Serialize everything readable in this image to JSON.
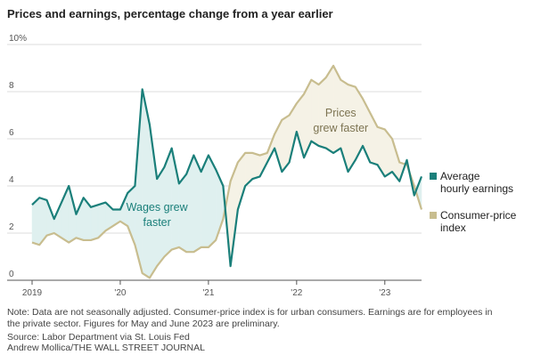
{
  "title": "Prices and earnings, percentage change from a year earlier",
  "chart_data": {
    "type": "line",
    "x_range": [
      "2019-01",
      "2023-06"
    ],
    "ylim": [
      0,
      10
    ],
    "yticks": [
      0,
      2,
      4,
      6,
      8,
      10
    ],
    "ytick_labels": [
      "0",
      "2",
      "4",
      "6",
      "8",
      "10%"
    ],
    "xticks": [
      {
        "date": "2019-01",
        "label": "2019"
      },
      {
        "date": "2020-01",
        "label": "'20"
      },
      {
        "date": "2021-01",
        "label": "'21"
      },
      {
        "date": "2022-01",
        "label": "'22"
      },
      {
        "date": "2023-01",
        "label": "'23"
      }
    ],
    "grid": true,
    "legend_position": "right",
    "shading": "area between the two series is shaded; teal tint where earnings exceed prices, beige tint where prices exceed earnings",
    "annotations": [
      {
        "lines": [
          "Wages grew",
          "faster"
        ],
        "color": "#1a7f7a"
      },
      {
        "lines": [
          "Prices",
          "grew faster"
        ],
        "color": "#7d7452"
      }
    ],
    "series": [
      {
        "name": "Average hourly earnings",
        "legend_lines": [
          "Average",
          "hourly earnings"
        ],
        "color": "#1a7f7a",
        "x": [
          "2019-01",
          "2019-02",
          "2019-03",
          "2019-04",
          "2019-05",
          "2019-06",
          "2019-07",
          "2019-08",
          "2019-09",
          "2019-10",
          "2019-11",
          "2019-12",
          "2020-01",
          "2020-02",
          "2020-03",
          "2020-04",
          "2020-05",
          "2020-06",
          "2020-07",
          "2020-08",
          "2020-09",
          "2020-10",
          "2020-11",
          "2020-12",
          "2021-01",
          "2021-02",
          "2021-03",
          "2021-04",
          "2021-05",
          "2021-06",
          "2021-07",
          "2021-08",
          "2021-09",
          "2021-10",
          "2021-11",
          "2021-12",
          "2022-01",
          "2022-02",
          "2022-03",
          "2022-04",
          "2022-05",
          "2022-06",
          "2022-07",
          "2022-08",
          "2022-09",
          "2022-10",
          "2022-11",
          "2022-12",
          "2023-01",
          "2023-02",
          "2023-03",
          "2023-04",
          "2023-05",
          "2023-06"
        ],
        "values": [
          3.2,
          3.5,
          3.4,
          2.6,
          3.3,
          4.0,
          2.8,
          3.5,
          3.1,
          3.2,
          3.3,
          3.0,
          3.0,
          3.7,
          4.0,
          8.1,
          6.6,
          4.3,
          4.8,
          5.6,
          4.1,
          4.5,
          5.3,
          4.6,
          5.3,
          4.7,
          4.0,
          0.6,
          3.0,
          4.0,
          4.3,
          4.4,
          5.0,
          5.6,
          4.6,
          5.0,
          6.3,
          5.2,
          5.9,
          5.7,
          5.6,
          5.4,
          5.6,
          4.6,
          5.1,
          5.7,
          5.0,
          4.9,
          4.4,
          4.6,
          4.2,
          5.1,
          3.6,
          4.4
        ]
      },
      {
        "name": "Consumer-price index",
        "legend_lines": [
          "Consumer-price",
          "index"
        ],
        "color": "#c8bd8f",
        "x": [
          "2019-01",
          "2019-02",
          "2019-03",
          "2019-04",
          "2019-05",
          "2019-06",
          "2019-07",
          "2019-08",
          "2019-09",
          "2019-10",
          "2019-11",
          "2019-12",
          "2020-01",
          "2020-02",
          "2020-03",
          "2020-04",
          "2020-05",
          "2020-06",
          "2020-07",
          "2020-08",
          "2020-09",
          "2020-10",
          "2020-11",
          "2020-12",
          "2021-01",
          "2021-02",
          "2021-03",
          "2021-04",
          "2021-05",
          "2021-06",
          "2021-07",
          "2021-08",
          "2021-09",
          "2021-10",
          "2021-11",
          "2021-12",
          "2022-01",
          "2022-02",
          "2022-03",
          "2022-04",
          "2022-05",
          "2022-06",
          "2022-07",
          "2022-08",
          "2022-09",
          "2022-10",
          "2022-11",
          "2022-12",
          "2023-01",
          "2023-02",
          "2023-03",
          "2023-04",
          "2023-05",
          "2023-06"
        ],
        "values": [
          1.6,
          1.5,
          1.9,
          2.0,
          1.8,
          1.6,
          1.8,
          1.7,
          1.7,
          1.8,
          2.1,
          2.3,
          2.5,
          2.3,
          1.5,
          0.3,
          0.1,
          0.6,
          1.0,
          1.3,
          1.4,
          1.2,
          1.2,
          1.4,
          1.4,
          1.7,
          2.6,
          4.2,
          5.0,
          5.4,
          5.4,
          5.3,
          5.4,
          6.2,
          6.8,
          7.0,
          7.5,
          7.9,
          8.5,
          8.3,
          8.6,
          9.1,
          8.5,
          8.3,
          8.2,
          7.7,
          7.1,
          6.5,
          6.4,
          6.0,
          5.0,
          4.9,
          4.0,
          3.0
        ]
      }
    ]
  },
  "notes": {
    "note": "Note: Data are not seasonally adjusted. Consumer-price index is for urban consumers. Earnings are for employees in the private sector. Figures for May and June 2023 are preliminary.",
    "source": "Source: Labor Department via St. Louis Fed",
    "credit": "Andrew Mollica/THE WALL STREET JOURNAL"
  }
}
